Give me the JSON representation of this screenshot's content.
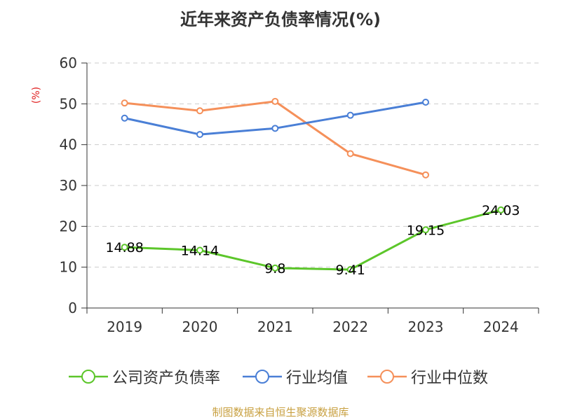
{
  "chart_data": {
    "type": "line",
    "title": "近年来资产负债率情况(%)",
    "ylabel": "(%)",
    "xlabel": "",
    "categories": [
      "2019",
      "2020",
      "2021",
      "2022",
      "2023",
      "2024"
    ],
    "ylim": [
      0,
      60
    ],
    "yticks": [
      0,
      10,
      20,
      30,
      40,
      50,
      60
    ],
    "grid": "horizontal dashed",
    "legend": "bottom",
    "series": [
      {
        "name": "公司资产负债率",
        "color": "#5cc62a",
        "values": [
          14.88,
          14.14,
          9.8,
          9.41,
          19.15,
          24.03
        ],
        "labels": [
          "14.88",
          "14.14",
          "9.8",
          "9.41",
          "19.15",
          "24.03"
        ]
      },
      {
        "name": "行业均值",
        "color": "#4a7fd6",
        "values": [
          46.5,
          42.5,
          44.0,
          47.2,
          50.4,
          null
        ]
      },
      {
        "name": "行业中位数",
        "color": "#f5905a",
        "values": [
          50.2,
          48.3,
          50.6,
          37.8,
          32.6,
          null
        ]
      }
    ]
  },
  "source": "制图数据来自恒生聚源数据库"
}
